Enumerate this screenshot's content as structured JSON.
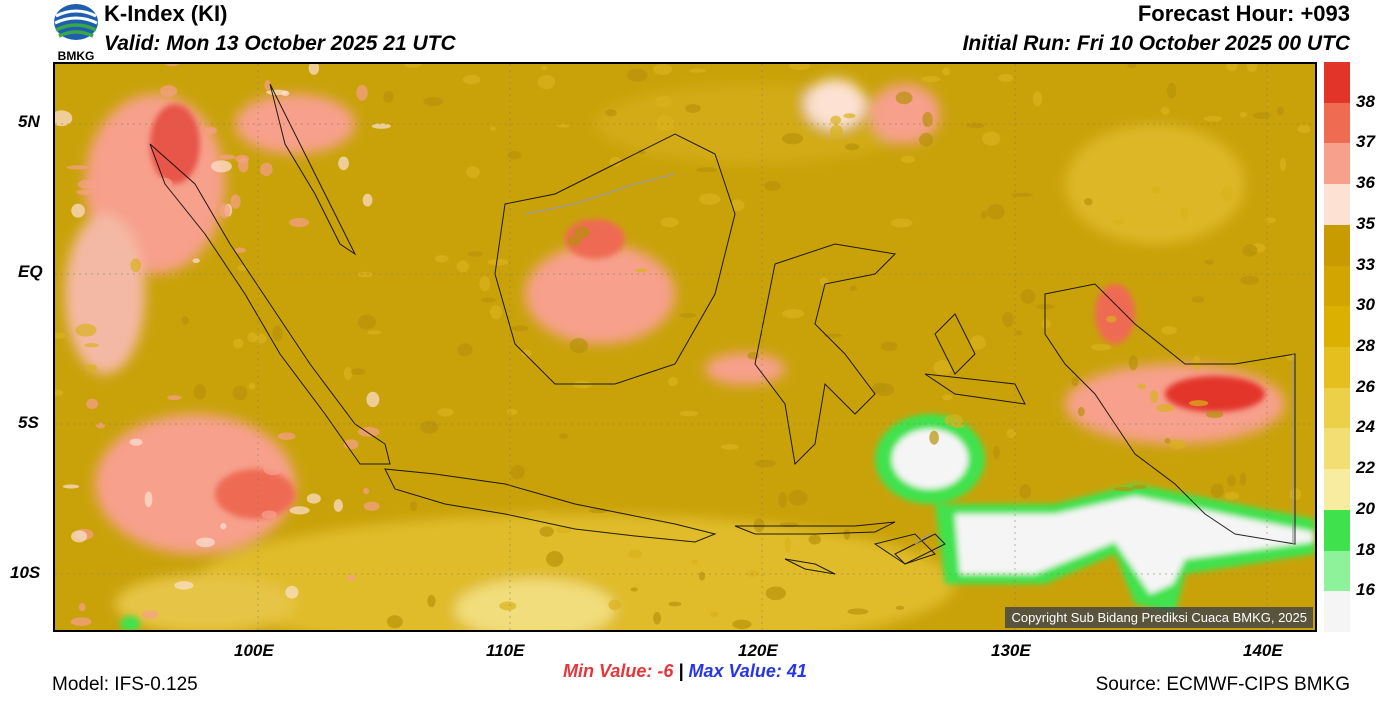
{
  "header": {
    "title": "K-Index (KI)",
    "valid": "Valid: Mon 13 October 2025 21 UTC",
    "forecast_hour": "Forecast Hour: +093",
    "initial_run": "Initial Run: Fri 10 October 2025 00 UTC"
  },
  "logo": {
    "text": "BMKG"
  },
  "map": {
    "lat_labels": [
      "5N",
      "EQ",
      "5S",
      "10S"
    ],
    "lon_labels": [
      "100E",
      "110E",
      "120E",
      "130E",
      "140E"
    ],
    "copyright": "Copyright Sub Bidang Prediksi Cuaca BMKG, 2025"
  },
  "colorbar": {
    "labels": [
      "38",
      "37",
      "36",
      "35",
      "33",
      "30",
      "28",
      "26",
      "24",
      "22",
      "20",
      "18",
      "16"
    ],
    "colors": [
      "#e3342a",
      "#ef6b52",
      "#f7a08c",
      "#fde1d2",
      "#c89b00",
      "#d2a500",
      "#dcb000",
      "#e4bf1e",
      "#ecd048",
      "#f2de72",
      "#f7eca0",
      "#3fe24d",
      "#8ef29a",
      "#f5f5f5"
    ]
  },
  "footer": {
    "model": "Model: IFS-0.125",
    "min_label": "Min Value:",
    "min_value": "-6",
    "separator": "|",
    "max_label": "Max Value:",
    "max_value": "41",
    "source": "Source: ECMWF-CIPS BMKG",
    "min_color": "#e8353a",
    "max_color": "#2536e8"
  }
}
